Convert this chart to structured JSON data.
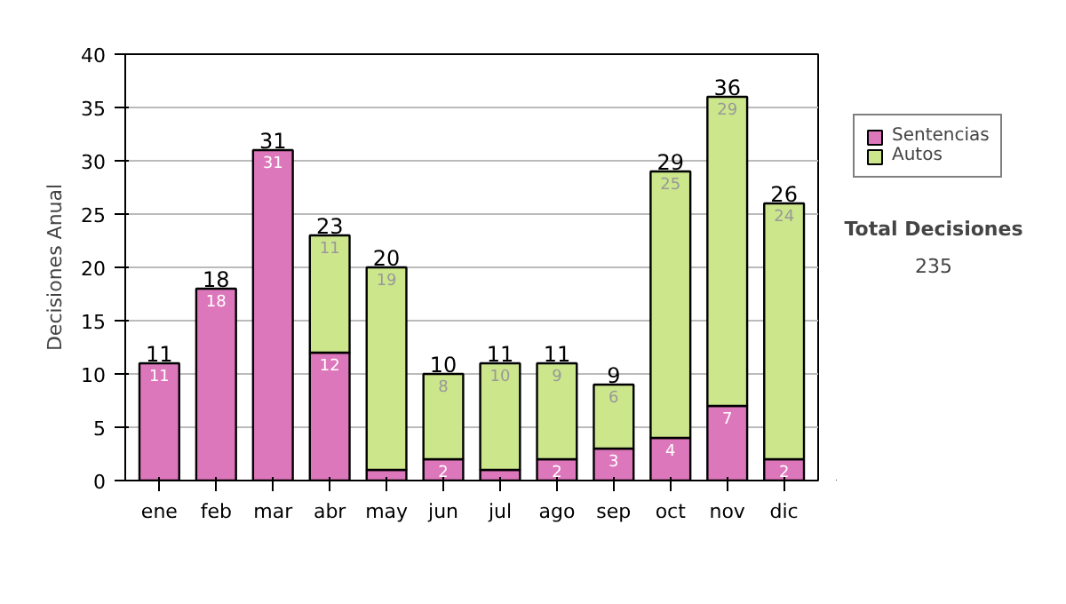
{
  "chart_data": {
    "type": "bar",
    "stacked": true,
    "ylabel": "Decisiones Anual",
    "categories": [
      "ene",
      "feb",
      "mar",
      "abr",
      "may",
      "jun",
      "jul",
      "ago",
      "sep",
      "oct",
      "nov",
      "dic"
    ],
    "series": [
      {
        "name": "Sentencias",
        "color": "#dd77bb",
        "values": [
          11,
          18,
          31,
          12,
          1,
          2,
          1,
          2,
          3,
          4,
          7,
          2
        ],
        "value_labels": [
          "11",
          "18",
          "31",
          "12",
          null,
          "2",
          null,
          "2",
          "3",
          "4",
          "7",
          "2"
        ]
      },
      {
        "name": "Autos",
        "color": "#cce68c",
        "values": [
          null,
          null,
          null,
          11,
          19,
          8,
          10,
          9,
          6,
          25,
          29,
          24
        ],
        "value_labels": [
          null,
          null,
          null,
          "11",
          "19",
          "8",
          "10",
          "9",
          "6",
          "25",
          "29",
          "24"
        ]
      }
    ],
    "totals": [
      "11",
      "18",
      "31",
      "23",
      "20",
      "10",
      "11",
      "11",
      "9",
      "29",
      "36",
      "26"
    ],
    "ylim": [
      0,
      40
    ],
    "yticks": [
      0,
      5,
      10,
      15,
      20,
      25,
      30,
      35,
      40
    ],
    "grid": "y",
    "legend": "right",
    "annotations": [
      "Total Decisiones",
      "235"
    ]
  }
}
